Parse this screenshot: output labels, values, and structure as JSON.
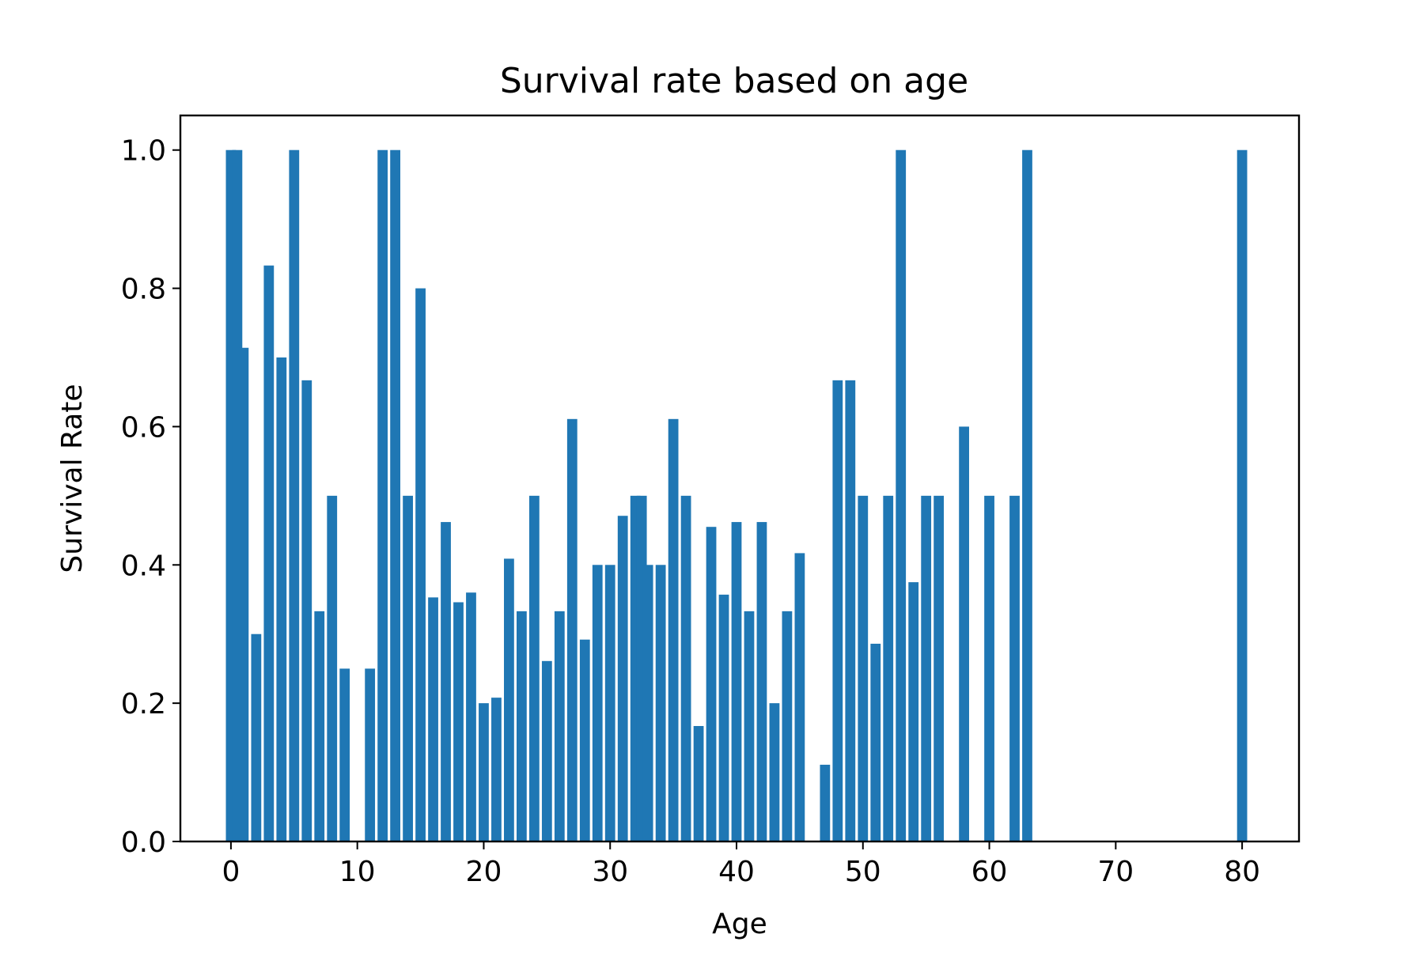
{
  "chart_data": {
    "type": "bar",
    "title": "Survival rate based on age",
    "xlabel": "Age",
    "ylabel": "Survival Rate",
    "xlim": [
      -4,
      84.5
    ],
    "ylim": [
      0,
      1.05
    ],
    "xticks": [
      0,
      10,
      20,
      30,
      40,
      50,
      60,
      70,
      80
    ],
    "yticks": [
      0.0,
      0.2,
      0.4,
      0.6,
      0.8,
      1.0
    ],
    "xtick_labels": [
      "0",
      "10",
      "20",
      "30",
      "40",
      "50",
      "60",
      "70",
      "80"
    ],
    "ytick_labels": [
      "0.0",
      "0.2",
      "0.4",
      "0.6",
      "0.8",
      "1.0"
    ],
    "bar_color": "#1f77b4",
    "grid": false,
    "legend": false,
    "x": [
      0,
      0.5,
      1,
      2,
      3,
      4,
      5,
      6,
      7,
      8,
      9,
      11,
      12,
      13,
      14,
      15,
      16,
      17,
      18,
      19,
      20,
      21,
      22,
      23,
      24,
      25,
      26,
      27,
      28,
      29,
      30,
      31,
      32,
      32.5,
      33,
      34,
      35,
      36,
      37,
      38,
      39,
      40,
      41,
      42,
      43,
      44,
      45,
      47,
      48,
      49,
      50,
      51,
      52,
      53,
      54,
      55,
      56,
      58,
      60,
      62,
      63,
      80
    ],
    "values": [
      1.0,
      1.0,
      0.714,
      0.3,
      0.833,
      0.7,
      1.0,
      0.667,
      0.333,
      0.5,
      0.25,
      0.25,
      1.0,
      1.0,
      0.5,
      0.8,
      0.353,
      0.462,
      0.346,
      0.36,
      0.2,
      0.208,
      0.409,
      0.333,
      0.5,
      0.261,
      0.333,
      0.611,
      0.292,
      0.4,
      0.4,
      0.471,
      0.5,
      0.5,
      0.4,
      0.4,
      0.611,
      0.5,
      0.167,
      0.455,
      0.357,
      0.462,
      0.333,
      0.462,
      0.2,
      0.333,
      0.417,
      0.111,
      0.667,
      0.667,
      0.5,
      0.286,
      0.5,
      1.0,
      0.375,
      0.5,
      0.5,
      0.6,
      0.5,
      0.5,
      1.0,
      1.0
    ]
  }
}
